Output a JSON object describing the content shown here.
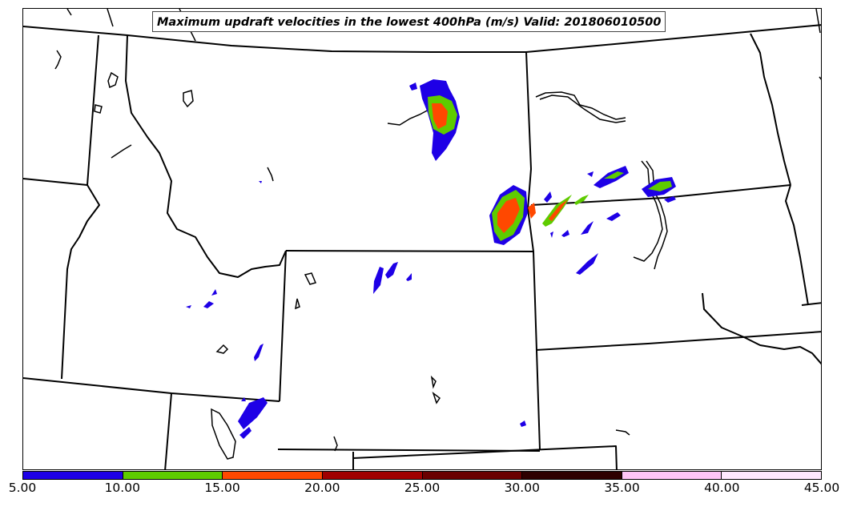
{
  "title": "Maximum updraft velocities in the lowest 400hPa (m/s) Valid: 201806010500",
  "colorbar": {
    "colors": [
      "#1e00e6",
      "#5ecc00",
      "#ff4800",
      "#a00000",
      "#6a0000",
      "#2e0000",
      "#ffc6f8",
      "#ffe9ff"
    ],
    "ticks": [
      "5.00",
      "10.00",
      "15.00",
      "20.00",
      "25.00",
      "30.00",
      "35.00",
      "40.00",
      "45.00"
    ]
  }
}
